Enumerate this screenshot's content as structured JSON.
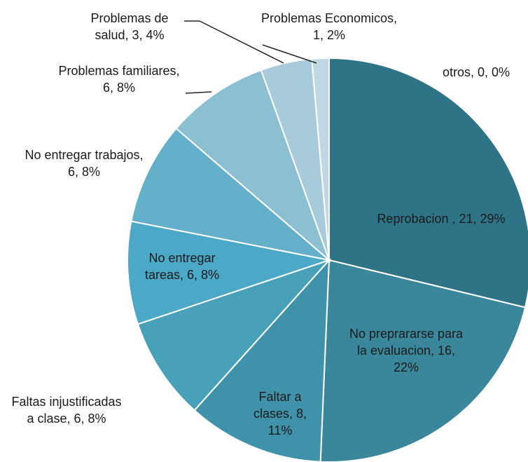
{
  "chart_data": {
    "type": "pie",
    "values": [
      21,
      16,
      8,
      6,
      6,
      6,
      6,
      3,
      1,
      0
    ],
    "value_labels": [
      "Reprobacion , 21, 29%",
      "No preprararse para la evaluacion, 16, 22%",
      "Faltar a clases, 8, 11%",
      "Faltas injustificadas a clase, 6, 8%",
      "No entregar tareas, 6, 8%",
      "No entregar trabajos, 6, 8%",
      "Problemas familiares, 6, 8%",
      "Problemas de salud, 3, 4%",
      "Problemas Economicos, 1, 2%",
      "otros, 0, 0%"
    ],
    "colors": [
      "#2f7387",
      "#3a879c",
      "#3f92aa",
      "#48a0b9",
      "#4ba8c6",
      "#64b0ca",
      "#8bbfd2",
      "#a7cbda",
      "#bfd8e3",
      "#cfe2ea"
    ]
  }
}
